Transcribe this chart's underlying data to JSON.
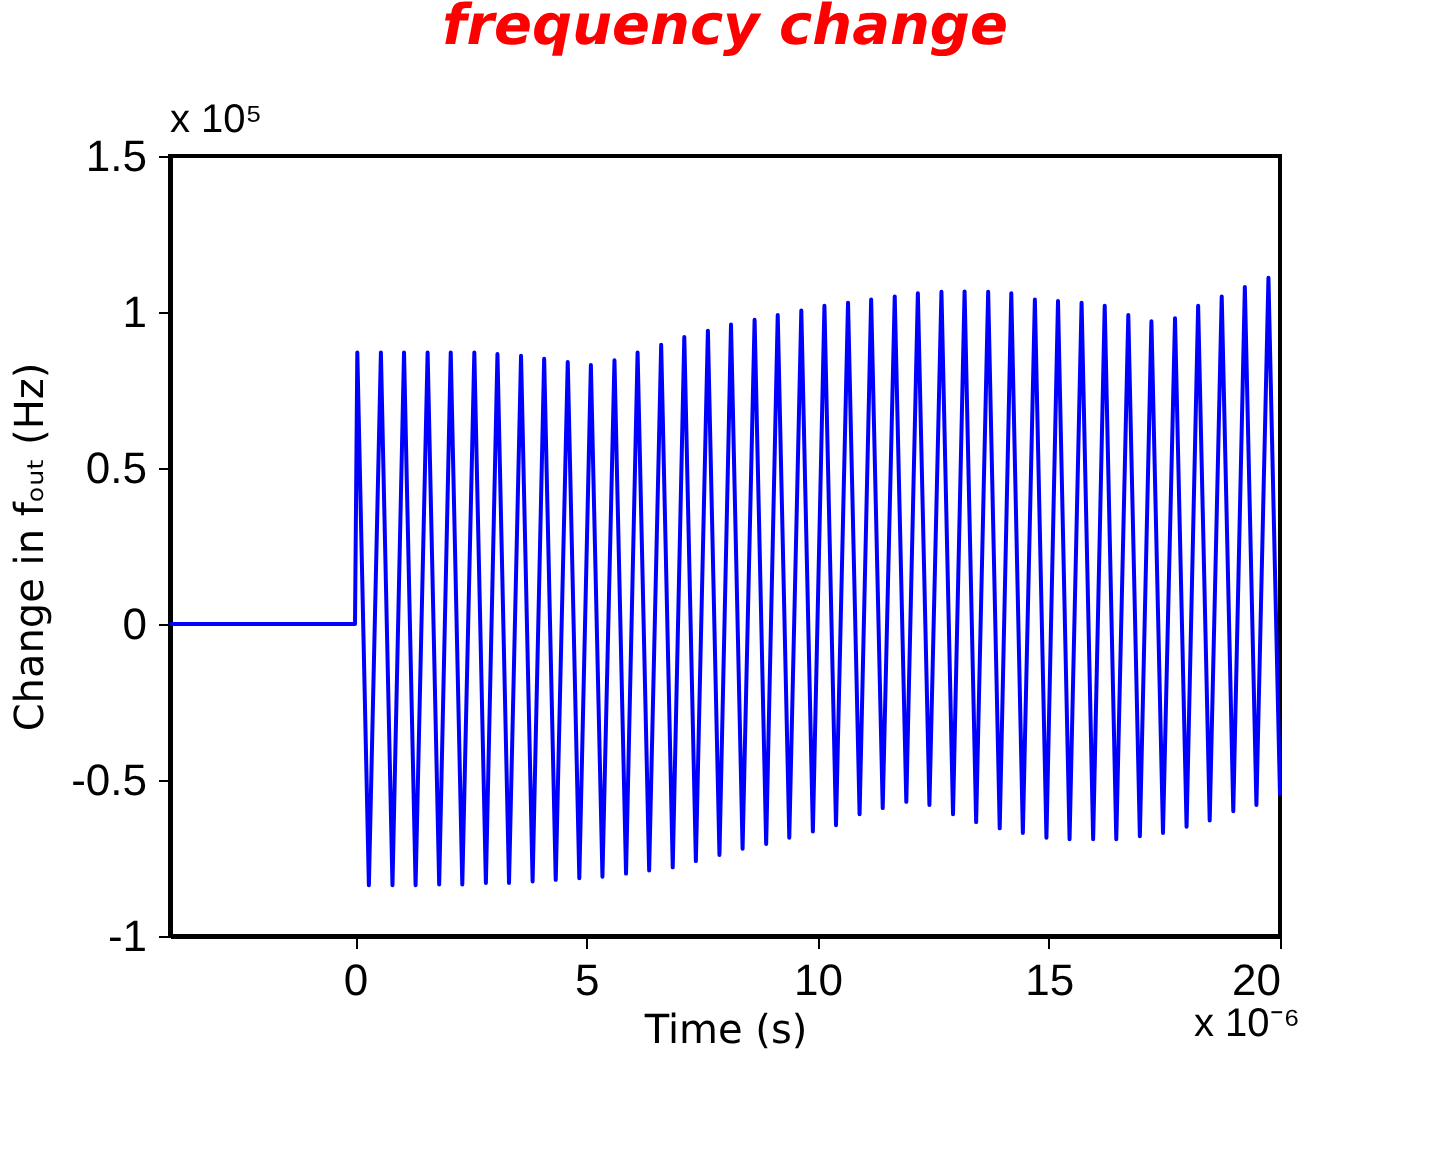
{
  "chart_data": {
    "type": "line",
    "title": "frequency change",
    "xlabel": "Time (s)",
    "ylabel": "Change in fₒᵤₜ (Hz)",
    "annotations": [
      "x 10⁵",
      "x 10⁻⁶"
    ],
    "xlim": [
      -4,
      20
    ],
    "xticks": [
      0,
      5,
      10,
      15,
      20
    ],
    "ylim": [
      -1,
      1.5
    ],
    "yticks": [
      -1,
      -0.5,
      0,
      0.5,
      1,
      1.5
    ],
    "grid": false,
    "marker": "none",
    "line_style": "solid",
    "series": [
      {
        "color": "#0000ff",
        "x": [
          -4,
          0,
          0.05,
          0.3,
          0.56,
          0.81,
          1.06,
          1.31,
          1.57,
          1.82,
          2.07,
          2.32,
          2.58,
          2.83,
          3.08,
          3.33,
          3.59,
          3.84,
          4.09,
          4.34,
          4.6,
          4.85,
          5.1,
          5.35,
          5.61,
          5.86,
          6.11,
          6.36,
          6.62,
          6.87,
          7.12,
          7.37,
          7.63,
          7.88,
          8.13,
          8.38,
          8.64,
          8.89,
          9.14,
          9.39,
          9.65,
          9.9,
          10.15,
          10.4,
          10.66,
          10.91,
          11.16,
          11.41,
          11.67,
          11.92,
          12.17,
          12.42,
          12.68,
          12.93,
          13.18,
          13.43,
          13.69,
          13.94,
          14.19,
          14.44,
          14.7,
          14.95,
          15.2,
          15.45,
          15.71,
          15.96,
          16.21,
          16.46,
          16.72,
          16.97,
          17.22,
          17.47,
          17.73,
          17.98,
          18.23,
          18.48,
          18.74,
          18.99,
          19.24,
          19.49,
          19.75,
          20.0
        ],
        "values": [
          0,
          0,
          0.87,
          -0.837,
          0.87,
          -0.837,
          0.87,
          -0.837,
          0.87,
          -0.835,
          0.87,
          -0.835,
          0.87,
          -0.83,
          0.865,
          -0.83,
          0.86,
          -0.825,
          0.85,
          -0.82,
          0.84,
          -0.815,
          0.83,
          -0.81,
          0.845,
          -0.8,
          0.87,
          -0.79,
          0.895,
          -0.78,
          0.92,
          -0.76,
          0.94,
          -0.74,
          0.96,
          -0.72,
          0.975,
          -0.705,
          0.99,
          -0.685,
          1.005,
          -0.665,
          1.02,
          -0.645,
          1.03,
          -0.61,
          1.04,
          -0.59,
          1.05,
          -0.57,
          1.06,
          -0.58,
          1.065,
          -0.61,
          1.066,
          -0.635,
          1.065,
          -0.655,
          1.06,
          -0.67,
          1.04,
          -0.685,
          1.035,
          -0.69,
          1.03,
          -0.69,
          1.02,
          -0.69,
          0.99,
          -0.68,
          0.97,
          -0.67,
          0.98,
          -0.65,
          1.02,
          -0.63,
          1.05,
          -0.6,
          1.08,
          -0.58,
          1.11,
          -0.55
        ]
      }
    ]
  }
}
